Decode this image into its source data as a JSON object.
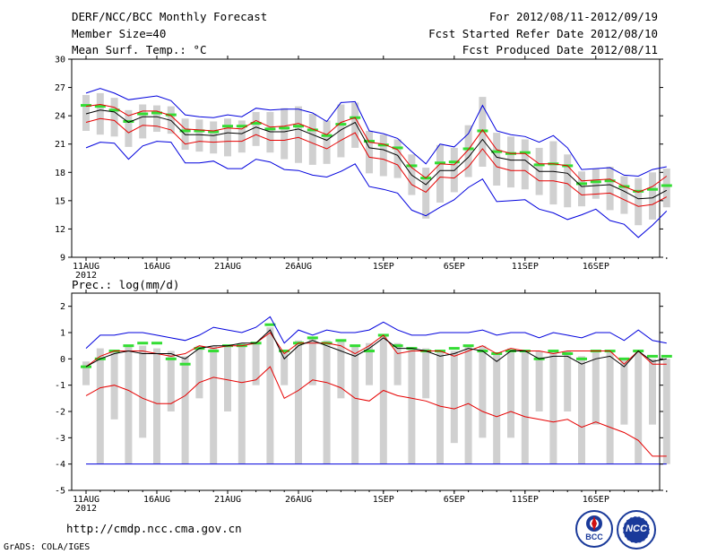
{
  "header": {
    "title": "DERF/NCC/BCC Monthly Forecast",
    "member": "Member Size=40",
    "variable": "Mean Surf. Temp.: °C",
    "period": "For 2012/08/11-2012/09/19",
    "start": "Fcst Started Refer Date 2012/08/10",
    "produced": "Fcst Produced Date 2012/08/11"
  },
  "footer": {
    "url": "http://cmdp.ncc.cma.gov.cn",
    "grads": "GrADS: COLA/IGES",
    "logo_bcc": "BCC",
    "logo_ncc": "NCC"
  },
  "colors": {
    "blue": "#0000dd",
    "red": "#e60000",
    "black": "#000000",
    "green": "#33dd33",
    "box": "#d0d0d0"
  },
  "chart_data": [
    {
      "type": "line",
      "name": "temperature",
      "title": "Mean Surf. Temp.: °C",
      "xlabel": "",
      "ylabel": "",
      "ylim": [
        9,
        30
      ],
      "yticks": [
        9,
        12,
        15,
        18,
        21,
        24,
        27,
        30
      ],
      "x_start_day": 11,
      "x_tick_days": [
        0,
        5,
        10,
        15,
        21,
        26,
        31,
        36
      ],
      "x_tick_labels": [
        "11AUG",
        "16AUG",
        "21AUG",
        "26AUG",
        "1SEP",
        "6SEP",
        "11SEP",
        "16SEP"
      ],
      "year_label": "2012",
      "series": [
        {
          "name": "max",
          "color": "#0000dd",
          "values": [
            26.4,
            26.9,
            26.4,
            25.7,
            25.9,
            26.1,
            25.6,
            24.1,
            23.9,
            23.8,
            24.1,
            23.9,
            24.8,
            24.6,
            24.7,
            24.7,
            24.3,
            23.4,
            25.4,
            25.5,
            22.4,
            22.1,
            21.6,
            20.2,
            18.9,
            21.0,
            20.7,
            22.1,
            25.1,
            22.4,
            22.0,
            21.8,
            21.2,
            21.9,
            20.6,
            18.3,
            18.4,
            18.5,
            17.7,
            17.6,
            18.3,
            18.6
          ]
        },
        {
          "name": "p_upper",
          "color": "#e60000",
          "values": [
            25.0,
            25.2,
            24.9,
            24.0,
            24.5,
            24.5,
            24.0,
            22.6,
            22.5,
            22.4,
            22.7,
            22.6,
            23.5,
            22.8,
            22.9,
            23.2,
            22.6,
            22.0,
            23.3,
            23.8,
            21.2,
            21.0,
            20.4,
            18.5,
            17.4,
            18.9,
            18.8,
            20.4,
            22.5,
            20.4,
            20.0,
            20.0,
            18.9,
            18.9,
            18.7,
            17.1,
            17.2,
            17.3,
            16.5,
            15.9,
            16.5,
            17.6
          ]
        },
        {
          "name": "mean",
          "color": "#000000",
          "values": [
            24.2,
            24.6,
            24.4,
            23.3,
            23.9,
            23.9,
            23.5,
            22.0,
            22.0,
            21.9,
            22.2,
            22.1,
            22.8,
            22.3,
            22.3,
            22.6,
            22.0,
            21.4,
            22.5,
            23.3,
            20.6,
            20.4,
            19.8,
            17.7,
            16.7,
            18.2,
            18.2,
            19.6,
            21.5,
            19.6,
            19.3,
            19.3,
            18.1,
            18.1,
            17.9,
            16.5,
            16.6,
            16.7,
            16.0,
            15.2,
            15.3,
            16.1
          ]
        },
        {
          "name": "p_lower",
          "color": "#e60000",
          "values": [
            23.3,
            23.7,
            23.5,
            22.2,
            23.0,
            22.9,
            22.5,
            21.0,
            21.3,
            21.2,
            21.3,
            21.3,
            22.0,
            21.4,
            21.4,
            21.7,
            21.1,
            20.5,
            21.4,
            22.2,
            19.6,
            19.4,
            18.8,
            16.7,
            15.9,
            17.5,
            17.4,
            18.6,
            20.5,
            18.6,
            18.2,
            18.2,
            17.1,
            17.1,
            16.8,
            15.6,
            15.7,
            15.8,
            15.1,
            14.4,
            14.6,
            15.4
          ]
        },
        {
          "name": "min",
          "color": "#0000dd",
          "values": [
            20.6,
            21.2,
            21.1,
            19.4,
            20.8,
            21.3,
            21.2,
            19.0,
            19.0,
            19.2,
            18.4,
            18.4,
            19.4,
            19.1,
            18.3,
            18.2,
            17.7,
            17.5,
            18.1,
            18.9,
            16.5,
            16.2,
            15.8,
            14.0,
            13.4,
            14.3,
            15.1,
            16.4,
            17.3,
            14.9,
            15.0,
            15.1,
            14.1,
            13.7,
            13.0,
            13.5,
            14.1,
            12.9,
            12.5,
            11.1,
            12.4,
            13.9
          ]
        }
      ],
      "obs": [
        25.1,
        25.0,
        24.6,
        23.4,
        24.2,
        24.3,
        24.1,
        22.4,
        22.4,
        22.3,
        22.9,
        22.9,
        23.2,
        22.6,
        22.7,
        22.9,
        22.5,
        21.9,
        23.1,
        23.8,
        21.3,
        20.9,
        20.6,
        18.7,
        17.4,
        19.0,
        19.1,
        20.5,
        22.4,
        20.2,
        20.0,
        20.1,
        18.8,
        18.9,
        18.7,
        16.8,
        17.0,
        17.1,
        16.5,
        16.0,
        16.2,
        16.6
      ],
      "box_top": [
        26.2,
        26.4,
        25.9,
        24.6,
        25.2,
        25.1,
        25.0,
        23.7,
        23.6,
        23.4,
        23.7,
        23.5,
        24.4,
        24.4,
        24.8,
        25.0,
        24.2,
        23.5,
        25.2,
        25.4,
        22.4,
        22.0,
        21.5,
        19.9,
        18.5,
        20.9,
        20.6,
        23.0,
        26.0,
        22.2,
        21.8,
        21.5,
        20.6,
        21.3,
        19.9,
        18.1,
        18.4,
        18.6,
        17.6,
        17.4,
        18.0,
        18.4
      ],
      "box_bottom": [
        22.4,
        22.0,
        21.8,
        20.7,
        21.6,
        22.3,
        22.1,
        20.4,
        20.2,
        20.0,
        19.7,
        20.1,
        20.8,
        20.1,
        19.4,
        19.0,
        18.8,
        18.9,
        19.6,
        20.6,
        17.9,
        17.6,
        17.4,
        15.6,
        13.1,
        14.8,
        15.9,
        17.5,
        18.6,
        16.6,
        16.4,
        16.2,
        15.6,
        14.6,
        14.3,
        14.4,
        15.2,
        14.0,
        13.6,
        12.4,
        13.0,
        14.3
      ]
    },
    {
      "type": "line",
      "name": "precipitation",
      "title": "Prec.: log(mm/d)",
      "xlabel": "",
      "ylabel": "",
      "ylim": [
        -5,
        2.5
      ],
      "yticks": [
        -5,
        -4,
        -3,
        -2,
        -1,
        0,
        1,
        2
      ],
      "x_start_day": 11,
      "x_tick_days": [
        0,
        5,
        10,
        15,
        21,
        26,
        31,
        36
      ],
      "x_tick_labels": [
        "11AUG",
        "16AUG",
        "21AUG",
        "26AUG",
        "1SEP",
        "6SEP",
        "11SEP",
        "16SEP"
      ],
      "year_label": "2012",
      "baseline": -4,
      "series": [
        {
          "name": "max",
          "color": "#0000dd",
          "values": [
            0.4,
            0.9,
            0.9,
            1.0,
            1.0,
            0.9,
            0.8,
            0.7,
            0.9,
            1.2,
            1.1,
            1.0,
            1.2,
            1.6,
            0.6,
            1.1,
            0.9,
            1.1,
            1.0,
            1.0,
            1.1,
            1.4,
            1.1,
            0.9,
            0.9,
            1.0,
            1.0,
            1.0,
            1.1,
            0.9,
            1.0,
            1.0,
            0.8,
            1.0,
            0.9,
            0.8,
            1.0,
            1.0,
            0.7,
            1.1,
            0.7,
            0.6
          ]
        },
        {
          "name": "p_upper",
          "color": "#e60000",
          "values": [
            -0.3,
            0.1,
            0.3,
            0.3,
            0.3,
            0.2,
            0.1,
            0.2,
            0.5,
            0.4,
            0.5,
            0.5,
            0.6,
            1.0,
            0.2,
            0.6,
            0.6,
            0.6,
            0.5,
            0.2,
            0.5,
            0.9,
            0.2,
            0.3,
            0.3,
            0.3,
            0.1,
            0.3,
            0.5,
            0.2,
            0.4,
            0.3,
            0.3,
            0.2,
            0.3,
            0.3,
            0.3,
            0.3,
            -0.2,
            0.3,
            -0.2,
            -0.2
          ]
        },
        {
          "name": "mean",
          "color": "#000000",
          "values": [
            -0.3,
            0.0,
            0.2,
            0.3,
            0.2,
            0.2,
            0.2,
            0.0,
            0.4,
            0.5,
            0.5,
            0.6,
            0.6,
            1.1,
            0.0,
            0.5,
            0.7,
            0.5,
            0.3,
            0.1,
            0.4,
            0.8,
            0.4,
            0.4,
            0.3,
            0.1,
            0.2,
            0.4,
            0.3,
            -0.1,
            0.3,
            0.3,
            0.0,
            0.1,
            0.1,
            -0.2,
            0.0,
            0.1,
            -0.3,
            0.3,
            -0.1,
            0.0
          ]
        },
        {
          "name": "p_lower",
          "color": "#e60000",
          "values": [
            -1.4,
            -1.1,
            -1.0,
            -1.2,
            -1.5,
            -1.7,
            -1.7,
            -1.4,
            -0.9,
            -0.7,
            -0.8,
            -0.9,
            -0.8,
            -0.3,
            -1.5,
            -1.2,
            -0.8,
            -0.9,
            -1.1,
            -1.5,
            -1.6,
            -1.2,
            -1.4,
            -1.5,
            -1.6,
            -1.8,
            -1.9,
            -1.7,
            -2.0,
            -2.2,
            -2.0,
            -2.2,
            -2.3,
            -2.4,
            -2.3,
            -2.6,
            -2.4,
            -2.6,
            -2.8,
            -3.1,
            -3.7,
            -3.7
          ]
        },
        {
          "name": "min",
          "color": "#0000dd",
          "values": [
            -4,
            -4,
            -4,
            -4,
            -4,
            -4,
            -4,
            -4,
            -4,
            -4,
            -4,
            -4,
            -4,
            -4,
            -4,
            -4,
            -4,
            -4,
            -4,
            -4,
            -4,
            -4,
            -4,
            -4,
            -4,
            -4,
            -4,
            -4,
            -4,
            -4,
            -4,
            -4,
            -4,
            -4,
            -4,
            -4,
            -4,
            -4,
            -4,
            -4,
            -4,
            -4
          ]
        }
      ],
      "obs": [
        -0.3,
        0.0,
        0.3,
        0.5,
        0.6,
        0.6,
        0.0,
        -0.2,
        0.4,
        0.3,
        0.5,
        0.5,
        0.6,
        1.3,
        0.3,
        0.6,
        0.8,
        0.6,
        0.7,
        0.5,
        0.3,
        0.9,
        0.5,
        0.4,
        0.3,
        0.3,
        0.4,
        0.5,
        0.3,
        0.2,
        0.3,
        0.3,
        0.0,
        0.3,
        0.2,
        0.0,
        0.3,
        0.3,
        0.0,
        0.3,
        0.1,
        0.1
      ],
      "box_top": [
        -0.1,
        0.4,
        0.3,
        0.5,
        0.5,
        0.4,
        0.3,
        0.1,
        0.5,
        0.5,
        0.5,
        0.6,
        0.6,
        1.2,
        0.3,
        0.7,
        0.8,
        0.7,
        0.7,
        0.5,
        0.6,
        0.9,
        0.6,
        0.4,
        0.4,
        0.3,
        0.3,
        0.5,
        0.5,
        0.2,
        0.4,
        0.3,
        0.3,
        0.3,
        0.3,
        0.1,
        0.3,
        0.3,
        0.0,
        0.3,
        0.0,
        0.0
      ],
      "box_bottom": [
        -0.9,
        -2.0,
        -2.3,
        -2.2,
        -3.0,
        -2.8,
        -1.6,
        -3.2,
        -1.5,
        -1.1,
        -1.8,
        -2.6,
        -0.6,
        -0.9,
        -1.0,
        -2.3,
        -0.9,
        -1.5,
        -1.3,
        -1.9,
        -0.7,
        -0.5,
        -1.0,
        -1.7,
        -1.2,
        -1.9,
        -3.2,
        -3.7,
        -3.0,
        -1.6,
        -2.9,
        -2.5,
        -2.0,
        -2.0,
        -2.2,
        -2.0,
        -2.4,
        -2.6,
        -2.4,
        -2.4,
        -2.3,
        -2.5
      ],
      "box_full_bottom": [
        -1.0,
        -4.0,
        -2.3,
        -4.0,
        -3.0,
        -4.0,
        -2.0,
        -4.0,
        -1.5,
        -4.0,
        -2.0,
        -4.0,
        -1.0,
        -4.0,
        -1.0,
        -4.0,
        -1.0,
        -4.0,
        -1.5,
        -4.0,
        -1.0,
        -4.0,
        -1.0,
        -4.0,
        -1.5,
        -4.0,
        -3.2,
        -4.0,
        -3.0,
        -4.0,
        -3.0,
        -4.0,
        -2.0,
        -4.0,
        -2.0,
        -4.0,
        -2.5,
        -4.0,
        -2.5,
        -4.0,
        -2.5,
        -4.0
      ]
    }
  ]
}
